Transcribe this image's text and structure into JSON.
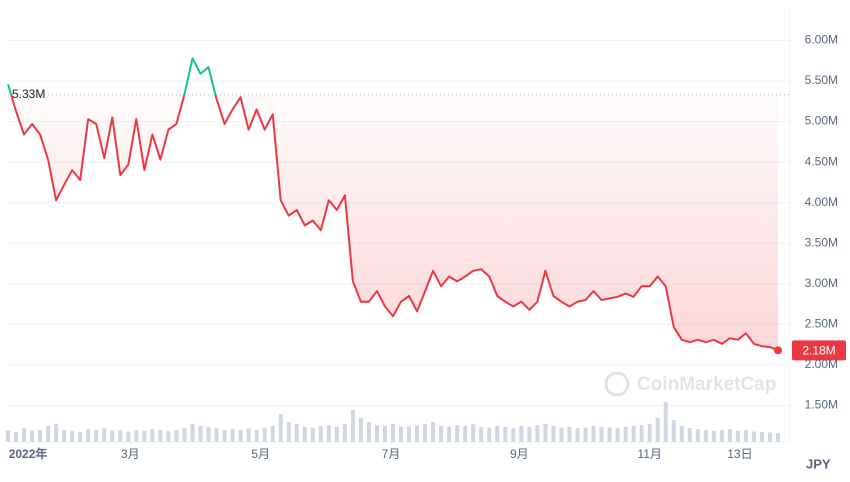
{
  "chart_data": {
    "type": "line",
    "currency": "JPY",
    "watermark": "CoinMarketCap",
    "baseline": {
      "value": 5.33,
      "label": "5.33M"
    },
    "last_price": {
      "value": 2.18,
      "label": "2.18M"
    },
    "up_color": "#16c784",
    "down_color": "#ea3943",
    "ylim": [
      1.05,
      6.4
    ],
    "yticks": [
      {
        "value": 1.5,
        "label": "1.50M"
      },
      {
        "value": 2,
        "label": "2.00M"
      },
      {
        "value": 2.5,
        "label": "2.50M"
      },
      {
        "value": 3,
        "label": "3.00M"
      },
      {
        "value": 3.5,
        "label": "3.50M"
      },
      {
        "value": 4,
        "label": "4.00M"
      },
      {
        "value": 4.5,
        "label": "4.50M"
      },
      {
        "value": 5,
        "label": "5.00M"
      },
      {
        "value": 5.5,
        "label": "5.50M"
      },
      {
        "value": 6,
        "label": "6.00M"
      }
    ],
    "xlim": [
      0,
      96
    ],
    "xticks": [
      {
        "value": 2.5,
        "label": "2022年"
      },
      {
        "value": 15.25,
        "label": "3月"
      },
      {
        "value": 31.5,
        "label": "5月"
      },
      {
        "value": 47.75,
        "label": "7月"
      },
      {
        "value": 63.75,
        "label": "9月"
      },
      {
        "value": 80,
        "label": "11月"
      },
      {
        "value": 91.25,
        "label": "13日"
      }
    ],
    "grid": true,
    "values": [
      5.46,
      5.13,
      4.84,
      4.97,
      4.84,
      4.53,
      4.03,
      4.22,
      4.4,
      4.28,
      5.03,
      4.97,
      4.55,
      5.05,
      4.34,
      4.47,
      5.03,
      4.4,
      4.84,
      4.53,
      4.9,
      4.97,
      5.34,
      5.78,
      5.59,
      5.67,
      5.28,
      4.97,
      5.15,
      5.3,
      4.9,
      5.15,
      4.9,
      5.09,
      4.03,
      3.84,
      3.91,
      3.72,
      3.78,
      3.66,
      4.03,
      3.91,
      4.09,
      3.03,
      2.78,
      2.78,
      2.91,
      2.72,
      2.6,
      2.78,
      2.85,
      2.66,
      2.91,
      3.16,
      2.97,
      3.09,
      3.03,
      3.09,
      3.16,
      3.18,
      3.09,
      2.85,
      2.78,
      2.72,
      2.78,
      2.68,
      2.78,
      3.16,
      2.85,
      2.78,
      2.72,
      2.78,
      2.8,
      2.91,
      2.8,
      2.82,
      2.84,
      2.88,
      2.84,
      2.97,
      2.97,
      3.09,
      2.97,
      2.47,
      2.31,
      2.28,
      2.31,
      2.28,
      2.31,
      2.26,
      2.33,
      2.31,
      2.39,
      2.26,
      2.23,
      2.22,
      2.18
    ],
    "volume_lim": [
      0,
      100
    ],
    "volume": [
      30,
      25,
      35,
      28,
      30,
      40,
      45,
      30,
      28,
      25,
      32,
      30,
      35,
      28,
      30,
      26,
      30,
      28,
      32,
      30,
      27,
      30,
      35,
      45,
      40,
      38,
      35,
      30,
      32,
      30,
      34,
      30,
      36,
      40,
      70,
      50,
      45,
      38,
      35,
      40,
      42,
      38,
      45,
      80,
      60,
      50,
      42,
      40,
      45,
      38,
      40,
      42,
      45,
      50,
      40,
      38,
      42,
      40,
      45,
      38,
      36,
      40,
      38,
      35,
      40,
      38,
      42,
      45,
      40,
      36,
      38,
      35,
      36,
      40,
      38,
      36,
      35,
      38,
      40,
      42,
      45,
      60,
      100,
      55,
      40,
      35,
      32,
      30,
      28,
      30,
      32,
      28,
      30,
      26,
      25,
      24,
      22
    ]
  }
}
